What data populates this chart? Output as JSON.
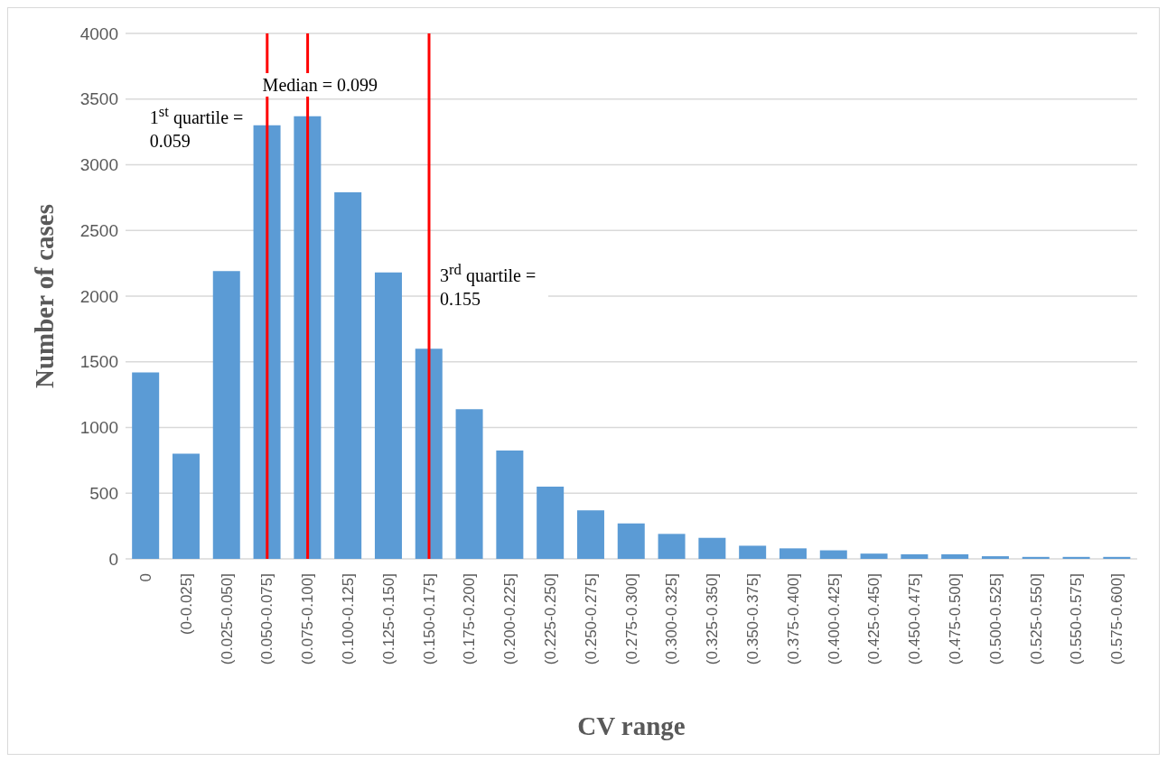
{
  "chart_data": {
    "type": "bar",
    "xlabel": "CV range",
    "ylabel": "Number of cases",
    "categories": [
      "0",
      "(0-0.025]",
      "(0.025-0.050]",
      "(0.050-0.075]",
      "(0.075-0.100]",
      "(0.100-0.125]",
      "(0.125-0.150]",
      "(0.150-0.175]",
      "(0.175-0.200]",
      "(0.200-0.225]",
      "(0.225-0.250]",
      "(0.250-0.275]",
      "(0.275-0.300]",
      "(0.300-0.325]",
      "(0.325-0.350]",
      "(0.350-0.375]",
      "(0.375-0.400]",
      "(0.400-0.425]",
      "(0.425-0.450]",
      "(0.450-0.475]",
      "(0.475-0.500]",
      "(0.500-0.525]",
      "(0.525-0.550]",
      "(0.550-0.575]",
      "(0.575-0.600]"
    ],
    "values": [
      1420,
      800,
      2190,
      3300,
      3370,
      2790,
      2180,
      1600,
      1140,
      825,
      550,
      370,
      270,
      190,
      160,
      100,
      80,
      65,
      40,
      35,
      35,
      20,
      15,
      15,
      15
    ],
    "color": "#5b9bd5",
    "ylim": [
      0,
      4000
    ],
    "yticks": [
      0,
      500,
      1000,
      1500,
      2000,
      2500,
      3000,
      3500,
      4000
    ],
    "grid": "y",
    "ref_lines": [
      {
        "axis": "x",
        "value": "(0.050-0.075]",
        "label": "1$^{st}$ quartile = 0.059",
        "color": "#ff0000"
      },
      {
        "axis": "x",
        "value": "(0.075-0.100]",
        "label": "Median = 0.099",
        "color": "#ff0000"
      },
      {
        "axis": "x",
        "value": "(0.150-0.175]",
        "label": "3$^{rd}$ quartile = 0.155",
        "color": "#ff0000"
      }
    ]
  }
}
